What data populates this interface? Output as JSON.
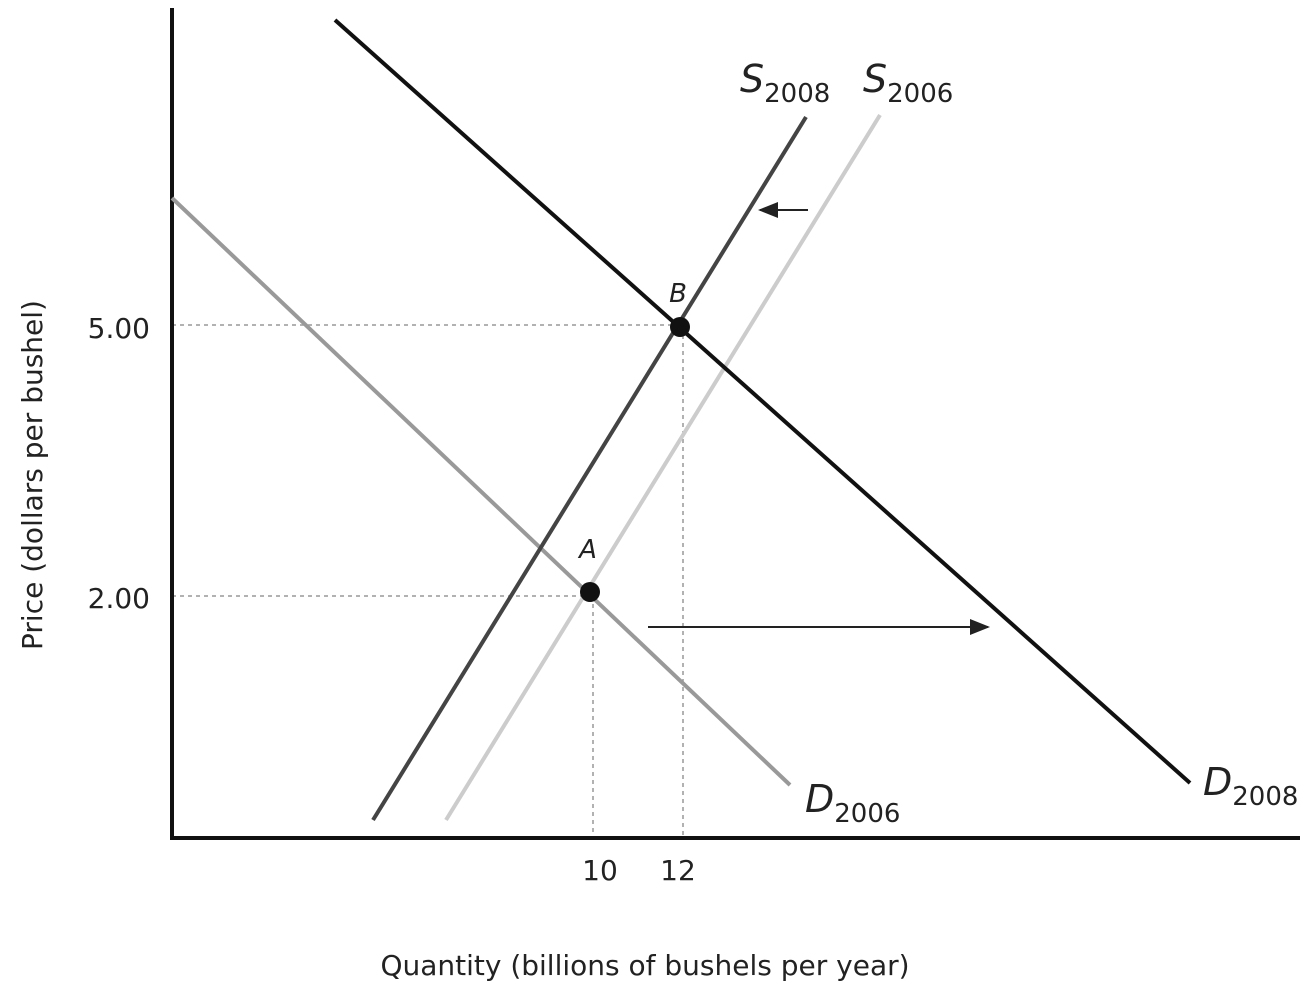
{
  "axes": {
    "y_label": "Price (dollars per bushel)",
    "x_label": "Quantity (billions of bushels per year)",
    "y_ticks": [
      "5.00",
      "2.00"
    ],
    "x_ticks": [
      "10",
      "12"
    ]
  },
  "curves": [
    {
      "letter": "S",
      "sub": "2008"
    },
    {
      "letter": "S",
      "sub": "2006"
    },
    {
      "letter": "D",
      "sub": "2006"
    },
    {
      "letter": "D",
      "sub": "2008"
    }
  ],
  "points": [
    "A",
    "B"
  ]
}
